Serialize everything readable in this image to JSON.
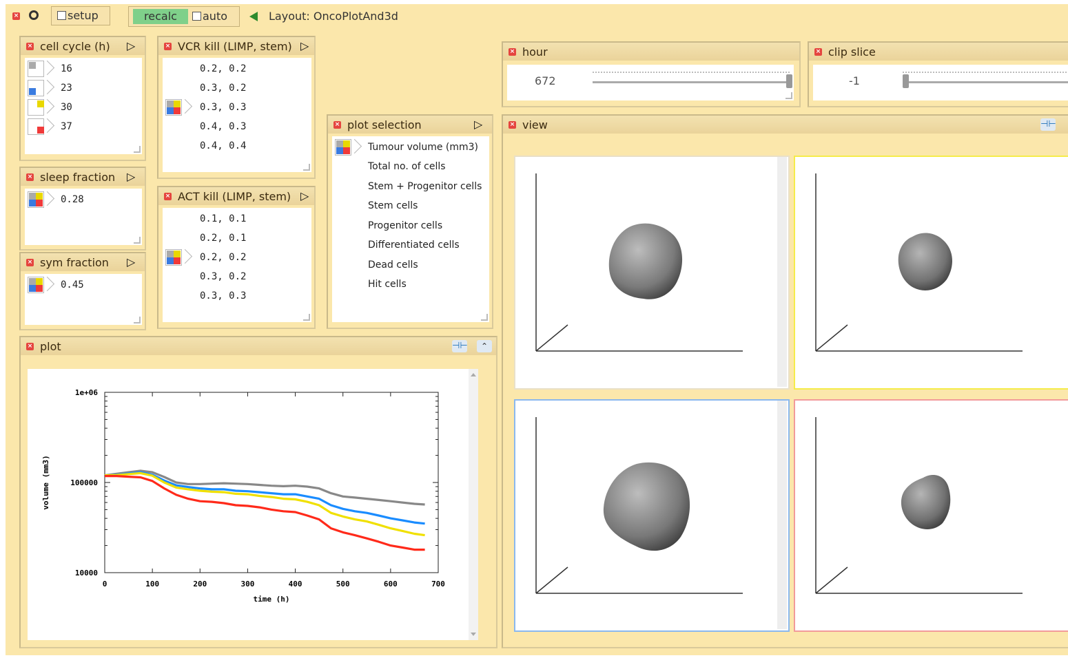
{
  "toolbar": {
    "setup_label": "setup",
    "recalc_label": "recalc",
    "auto_label": "auto",
    "layout_text": "Layout: OncoPlotAnd3d"
  },
  "panels": {
    "cell_cycle": {
      "title": "cell cycle (h)",
      "items": [
        "16",
        "23",
        "30",
        "37"
      ]
    },
    "vcr_kill": {
      "title": "VCR kill (LIMP, stem)",
      "items": [
        "0.2, 0.2",
        "0.3, 0.2",
        "0.3, 0.3",
        "0.4, 0.3",
        "0.4, 0.4"
      ]
    },
    "sleep_fraction": {
      "title": "sleep fraction",
      "value": "0.28"
    },
    "act_kill": {
      "title": "ACT kill (LIMP, stem)",
      "items": [
        "0.1, 0.1",
        "0.2, 0.1",
        "0.2, 0.2",
        "0.3, 0.2",
        "0.3, 0.3"
      ]
    },
    "sym_fraction": {
      "title": "sym fraction",
      "value": "0.45"
    },
    "plot_selection": {
      "title": "plot selection",
      "items": [
        "Tumour volume (mm3)",
        "Total no. of cells",
        "Stem + Progenitor cells",
        "Stem cells",
        "Progenitor cells",
        "Differentiated cells",
        "Dead cells",
        "Hit cells"
      ]
    },
    "hour": {
      "title": "hour",
      "value": "672",
      "slider_fraction": 1.0
    },
    "clip_slice": {
      "title": "clip slice",
      "value": "-1",
      "slider_fraction": 0.0
    },
    "view": {
      "title": "view"
    },
    "plot": {
      "title": "plot"
    }
  },
  "colors": {
    "gray": "#888888",
    "blue": "#1a8cff",
    "yellow": "#f0e000",
    "red": "#ff2a1a",
    "view_border_yellow": "#f5ec4a",
    "view_border_blue": "#8ab8ee",
    "view_border_red": "#f29a9a"
  },
  "chart_data": {
    "type": "line",
    "xlabel": "time (h)",
    "ylabel": "volume (mm3)",
    "xlim": [
      0,
      700
    ],
    "ylim": [
      10000,
      1000000
    ],
    "y_scale": "log",
    "x_ticks": [
      "0",
      "100",
      "200",
      "300",
      "400",
      "500",
      "600",
      "700"
    ],
    "y_ticks": [
      "10000",
      "100000",
      "1e+06"
    ],
    "x": [
      0,
      25,
      50,
      75,
      100,
      125,
      150,
      175,
      200,
      225,
      250,
      275,
      300,
      325,
      350,
      375,
      400,
      425,
      450,
      475,
      500,
      525,
      550,
      575,
      600,
      625,
      650,
      672
    ],
    "series": [
      {
        "color": "gray",
        "values": [
          120000,
          125000,
          130000,
          135000,
          130000,
          115000,
          100000,
          96000,
          96000,
          97000,
          98000,
          97000,
          96000,
          94000,
          92000,
          91000,
          92000,
          90000,
          86000,
          76000,
          70000,
          68000,
          66000,
          64000,
          62000,
          60000,
          58000,
          57000
        ]
      },
      {
        "color": "blue",
        "values": [
          120000,
          122000,
          126000,
          130000,
          122000,
          105000,
          93000,
          89000,
          86000,
          84000,
          84000,
          81000,
          80000,
          78000,
          76000,
          74000,
          74000,
          70000,
          66000,
          56000,
          51000,
          48000,
          46000,
          43000,
          40000,
          38000,
          36000,
          35000
        ]
      },
      {
        "color": "yellow",
        "values": [
          120000,
          121000,
          124000,
          127000,
          119000,
          100000,
          88000,
          84000,
          81000,
          79000,
          78000,
          75000,
          74000,
          71000,
          69000,
          66000,
          65000,
          61000,
          56000,
          46000,
          42000,
          39000,
          37000,
          34000,
          31000,
          29000,
          27000,
          26000
        ]
      },
      {
        "color": "red",
        "values": [
          118000,
          118000,
          116000,
          114000,
          104000,
          86000,
          73000,
          66000,
          62000,
          61000,
          59000,
          56000,
          55000,
          53000,
          50000,
          48000,
          47000,
          43000,
          39000,
          31000,
          28000,
          26000,
          24000,
          22000,
          20000,
          19000,
          18000,
          18000
        ]
      }
    ]
  }
}
